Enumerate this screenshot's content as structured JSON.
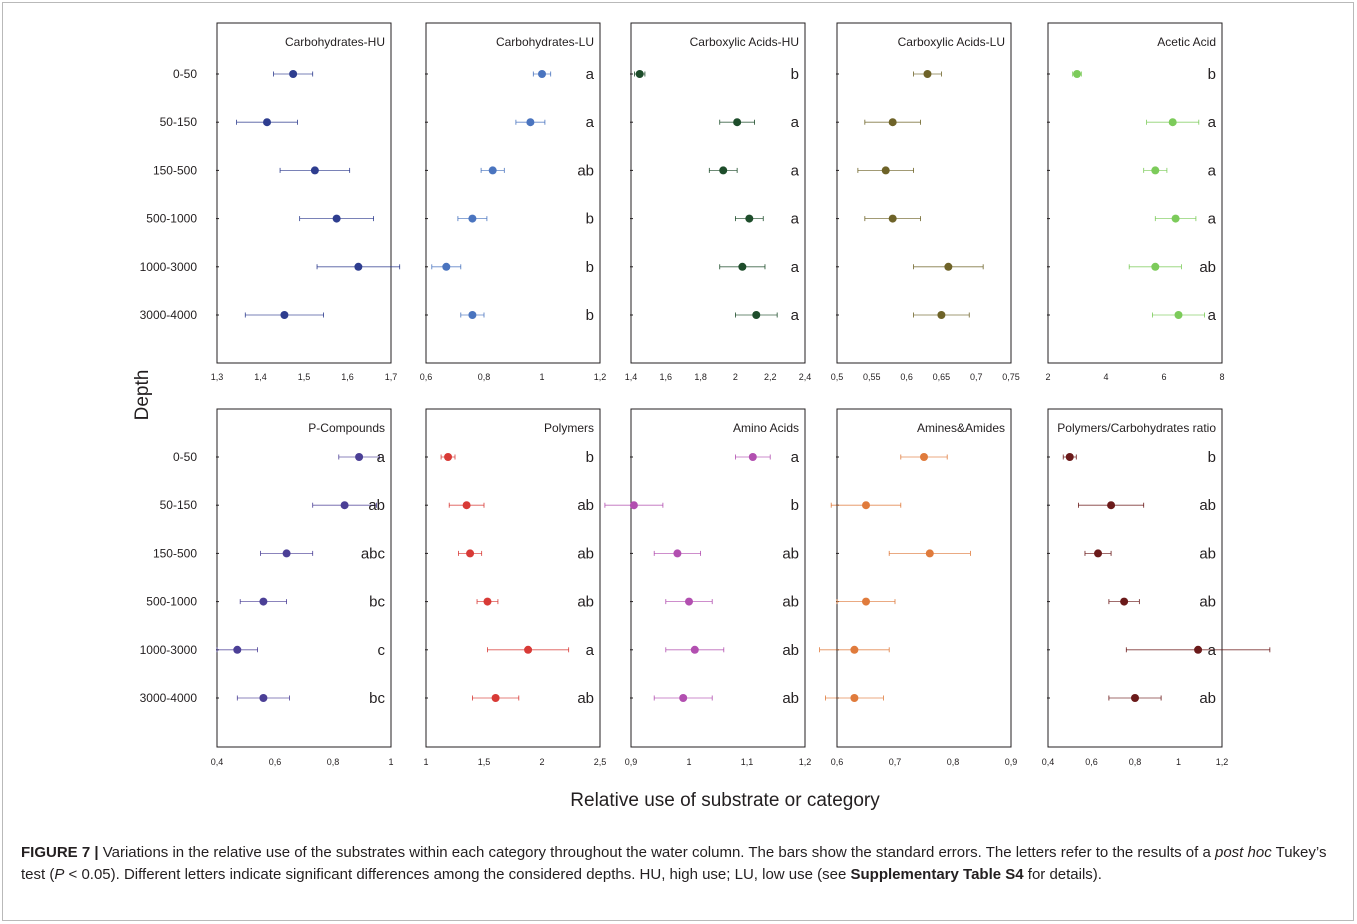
{
  "figure": {
    "ylabel": "Depth",
    "xlabel": "Relative use of substrate or category",
    "depths": [
      "0-50",
      "50-150",
      "150-500",
      "500-1000",
      "1000-3000",
      "3000-4000"
    ]
  },
  "caption": {
    "label": "FIGURE 7 |",
    "part1": " Variations in the relative use of the substrates within each category throughout the water column. The bars show the standard errors. The letters refer to the results of a ",
    "italic1": "post hoc",
    "part2": " Tukey’s test (",
    "italic2": "P",
    "part3": " < 0.05). Different letters indicate significant differences among the considered depths. HU, high use; LU, low use (see ",
    "bold1": "Supplementary Table S4",
    "part4": " for details)."
  },
  "chart_data": [
    {
      "type": "scatter",
      "title": "Carbohydrates-HU",
      "color": "#2e3d8f",
      "xlim": [
        1.3,
        1.7
      ],
      "xticks": [
        "1,3",
        "1,4",
        "1,5",
        "1,6",
        "1,7"
      ],
      "categories": [
        "0-50",
        "50-150",
        "150-500",
        "500-1000",
        "1000-3000",
        "3000-4000"
      ],
      "values": [
        1.475,
        1.415,
        1.525,
        1.575,
        1.625,
        1.455
      ],
      "errors": [
        0.045,
        0.07,
        0.08,
        0.085,
        0.095,
        0.09
      ],
      "letters": [
        "",
        "",
        "",
        "",
        "",
        ""
      ]
    },
    {
      "type": "scatter",
      "title": "Carbohydrates-LU",
      "color": "#4a74bf",
      "xlim": [
        0.6,
        1.2
      ],
      "xticks": [
        "0,6",
        "0,8",
        "1",
        "1,2"
      ],
      "categories": [
        "0-50",
        "50-150",
        "150-500",
        "500-1000",
        "1000-3000",
        "3000-4000"
      ],
      "values": [
        1.0,
        0.96,
        0.83,
        0.76,
        0.67,
        0.76
      ],
      "errors": [
        0.03,
        0.05,
        0.04,
        0.05,
        0.05,
        0.04
      ],
      "letters": [
        "a",
        "a",
        "ab",
        "b",
        "b",
        "b"
      ]
    },
    {
      "type": "scatter",
      "title": "Carboxylic Acids-HU",
      "color": "#1e4d2b",
      "xlim": [
        1.4,
        2.4
      ],
      "xticks": [
        "1,4",
        "1,6",
        "1,8",
        "2",
        "2,2",
        "2,4"
      ],
      "categories": [
        "0-50",
        "50-150",
        "150-500",
        "500-1000",
        "1000-3000",
        "3000-4000"
      ],
      "values": [
        1.45,
        2.01,
        1.93,
        2.08,
        2.04,
        2.12
      ],
      "errors": [
        0.03,
        0.1,
        0.08,
        0.08,
        0.13,
        0.12
      ],
      "letters": [
        "b",
        "a",
        "a",
        "a",
        "a",
        "a"
      ]
    },
    {
      "type": "scatter",
      "title": "Carboxylic Acids-LU",
      "color": "#6e6328",
      "xlim": [
        0.5,
        0.75
      ],
      "xticks": [
        "0,5",
        "0,55",
        "0,6",
        "0,65",
        "0,7",
        "0,75"
      ],
      "categories": [
        "0-50",
        "50-150",
        "150-500",
        "500-1000",
        "1000-3000",
        "3000-4000"
      ],
      "values": [
        0.63,
        0.58,
        0.57,
        0.58,
        0.66,
        0.65
      ],
      "errors": [
        0.02,
        0.04,
        0.04,
        0.04,
        0.05,
        0.04
      ],
      "letters": [
        "",
        "",
        "",
        "",
        "",
        ""
      ]
    },
    {
      "type": "scatter",
      "title": "Acetic Acid",
      "color": "#7ccb5a",
      "xlim": [
        2,
        8
      ],
      "xticks": [
        "2",
        "4",
        "6",
        "8"
      ],
      "categories": [
        "0-50",
        "50-150",
        "150-500",
        "500-1000",
        "1000-3000",
        "3000-4000"
      ],
      "values": [
        3.0,
        6.3,
        5.7,
        6.4,
        5.7,
        6.5
      ],
      "errors": [
        0.15,
        0.9,
        0.4,
        0.7,
        0.9,
        0.9
      ],
      "letters": [
        "b",
        "a",
        "a",
        "a",
        "ab",
        "a"
      ]
    },
    {
      "type": "scatter",
      "title": "P-Compounds",
      "color": "#4b3f96",
      "xlim": [
        0.4,
        1.0
      ],
      "xticks": [
        "0,4",
        "0,6",
        "0,8",
        "1"
      ],
      "categories": [
        "0-50",
        "50-150",
        "150-500",
        "500-1000",
        "1000-3000",
        "3000-4000"
      ],
      "values": [
        0.89,
        0.84,
        0.64,
        0.56,
        0.47,
        0.56
      ],
      "errors": [
        0.07,
        0.11,
        0.09,
        0.08,
        0.07,
        0.09
      ],
      "letters": [
        "a",
        "ab",
        "abc",
        "bc",
        "c",
        "bc"
      ]
    },
    {
      "type": "scatter",
      "title": "Polymers",
      "color": "#d83a36",
      "xlim": [
        1.0,
        2.5
      ],
      "xticks": [
        "1",
        "1,5",
        "2",
        "2,5"
      ],
      "categories": [
        "0-50",
        "50-150",
        "150-500",
        "500-1000",
        "1000-3000",
        "3000-4000"
      ],
      "values": [
        1.19,
        1.35,
        1.38,
        1.53,
        1.88,
        1.6
      ],
      "errors": [
        0.06,
        0.15,
        0.1,
        0.09,
        0.35,
        0.2
      ],
      "letters": [
        "b",
        "ab",
        "ab",
        "ab",
        "a",
        "ab"
      ]
    },
    {
      "type": "scatter",
      "title": "Amino Acids",
      "color": "#b24fb0",
      "xlim": [
        0.9,
        1.2
      ],
      "xticks": [
        "0,9",
        "1",
        "1,1",
        "1,2"
      ],
      "categories": [
        "0-50",
        "50-150",
        "150-500",
        "500-1000",
        "1000-3000",
        "3000-4000"
      ],
      "values": [
        1.11,
        0.905,
        0.98,
        1.0,
        1.01,
        0.99
      ],
      "errors": [
        0.03,
        0.05,
        0.04,
        0.04,
        0.05,
        0.05
      ],
      "letters": [
        "a",
        "b",
        "ab",
        "ab",
        "ab",
        "ab"
      ]
    },
    {
      "type": "scatter",
      "title": "Amines&Amides",
      "color": "#e07b3c",
      "xlim": [
        0.6,
        0.9
      ],
      "xticks": [
        "0,6",
        "0,7",
        "0,8",
        "0,9"
      ],
      "categories": [
        "0-50",
        "50-150",
        "150-500",
        "500-1000",
        "1000-3000",
        "3000-4000"
      ],
      "values": [
        0.75,
        0.65,
        0.76,
        0.65,
        0.63,
        0.63
      ],
      "errors": [
        0.04,
        0.06,
        0.07,
        0.05,
        0.06,
        0.05
      ],
      "letters": [
        "",
        "",
        "",
        "",
        "",
        ""
      ]
    },
    {
      "type": "scatter",
      "title": "Polymers/Carbohydrates ratio",
      "color": "#6b1a1a",
      "xlim": [
        0.4,
        1.2
      ],
      "xticks": [
        "0,4",
        "0,6",
        "0,8",
        "1",
        "1,2"
      ],
      "categories": [
        "0-50",
        "50-150",
        "150-500",
        "500-1000",
        "1000-3000",
        "3000-4000"
      ],
      "values": [
        0.5,
        0.69,
        0.63,
        0.75,
        1.09,
        0.8
      ],
      "errors": [
        0.03,
        0.15,
        0.06,
        0.07,
        0.33,
        0.12
      ],
      "letters": [
        "b",
        "ab",
        "ab",
        "ab",
        "a",
        "ab"
      ]
    }
  ]
}
